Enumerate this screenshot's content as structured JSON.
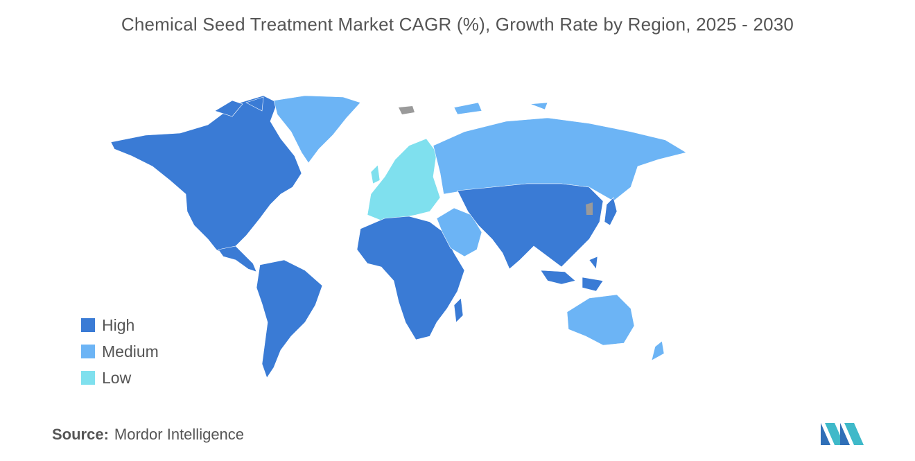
{
  "title": "Chemical Seed Treatment Market CAGR (%), Growth Rate by Region, 2025 - 2030",
  "legend": [
    {
      "label": "High",
      "color": "#3a7bd5"
    },
    {
      "label": "Medium",
      "color": "#6cb4f5"
    },
    {
      "label": "Low",
      "color": "#7fe0ee"
    }
  ],
  "no_data_color": "#9a9a9a",
  "source": {
    "label": "Source:",
    "text": "Mordor Intelligence"
  },
  "regions": [
    {
      "name": "North America",
      "category": "High"
    },
    {
      "name": "South America",
      "category": "High"
    },
    {
      "name": "Africa",
      "category": "High"
    },
    {
      "name": "Asia",
      "category": "High"
    },
    {
      "name": "Greenland",
      "category": "Medium"
    },
    {
      "name": "Russia",
      "category": "Medium"
    },
    {
      "name": "Middle East",
      "category": "Medium"
    },
    {
      "name": "Australia",
      "category": "Medium"
    },
    {
      "name": "New Zealand",
      "category": "Medium"
    },
    {
      "name": "Europe",
      "category": "Low"
    }
  ]
}
